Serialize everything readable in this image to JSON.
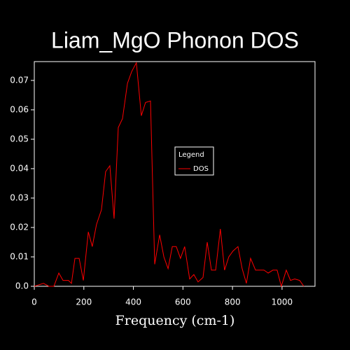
{
  "chart_data": {
    "type": "line",
    "title": "Liam_MgO Phonon DOS",
    "xlabel": "Frequency (cm-1)",
    "legend_title": "Legend",
    "legend": "right",
    "series": [
      {
        "name": "DOS",
        "color": "#ff0000",
        "x": [
          0,
          37,
          59,
          79,
          99,
          116,
          138,
          150,
          164,
          181,
          198,
          218,
          234,
          251,
          271,
          288,
          305,
          322,
          339,
          356,
          376,
          393,
          412,
          432,
          449,
          469,
          486,
          506,
          523,
          540,
          557,
          573,
          590,
          607,
          627,
          644,
          661,
          681,
          698,
          715,
          732,
          751,
          768,
          785,
          802,
          822,
          839,
          856,
          873,
          893,
          910,
          927,
          944,
          963,
          980,
          997,
          1017,
          1034,
          1051,
          1071,
          1088
        ],
        "values": [
          0,
          0.001,
          0,
          0,
          0.0045,
          0.002,
          0.002,
          0.001,
          0.0095,
          0.0095,
          0.002,
          0.0185,
          0.0135,
          0.021,
          0.026,
          0.039,
          0.041,
          0.023,
          0.054,
          0.057,
          0.069,
          0.073,
          0.076,
          0.058,
          0.0625,
          0.063,
          0.0075,
          0.0175,
          0.01,
          0.006,
          0.0135,
          0.0135,
          0.0095,
          0.0135,
          0.0025,
          0.004,
          0.0015,
          0.003,
          0.015,
          0.0055,
          0.0055,
          0.0195,
          0.0055,
          0.01,
          0.012,
          0.0135,
          0.006,
          0.001,
          0.0095,
          0.0055,
          0.0055,
          0.0055,
          0.0045,
          0.0055,
          0.0055,
          0,
          0.0055,
          0.002,
          0.0025,
          0.002,
          0
        ]
      }
    ],
    "xlim": [
      0,
      1133
    ],
    "xticks": [
      0,
      200,
      400,
      600,
      800,
      1000
    ],
    "ylim": [
      0,
      0.0764
    ],
    "yticks": [
      {
        "value": 0,
        "label": "0.0"
      },
      0.01,
      0.02,
      0.03,
      0.04,
      0.05,
      0.06,
      0.07
    ]
  }
}
